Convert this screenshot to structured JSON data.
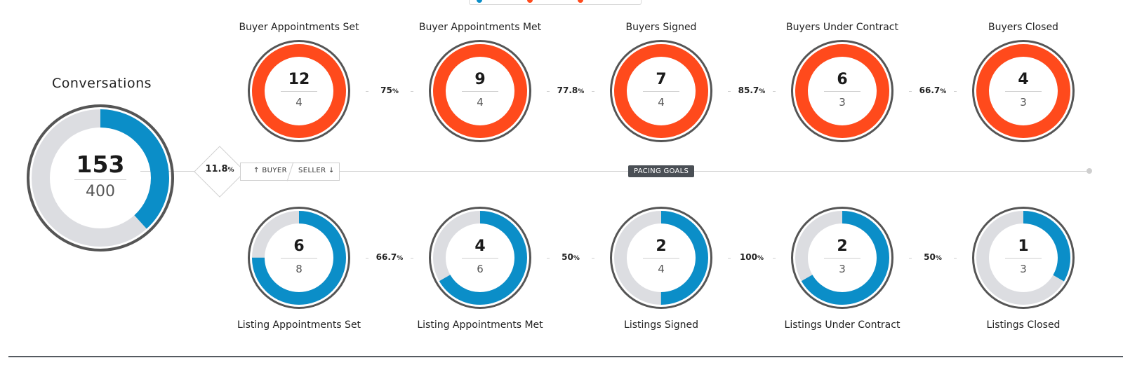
{
  "colors": {
    "buyer_fill": "#ff4a1c",
    "listing_fill": "#0b8ec8",
    "track": "#dcdde1",
    "ring": "#555555"
  },
  "conversations": {
    "title": "Conversations",
    "actual": "153",
    "goal": "400",
    "progress": 0.3825
  },
  "conversion_rate": {
    "value": "11.8",
    "unit": "%"
  },
  "toggle": {
    "buyer_label": "↑ BUYER",
    "seller_label": "SELLER ↓"
  },
  "pacing_label": "PACING GOALS",
  "buyer_stages": [
    {
      "label": "Buyer Appointments Set",
      "actual": "12",
      "goal": "4",
      "progress": 1
    },
    {
      "label": "Buyer Appointments Met",
      "actual": "9",
      "goal": "4",
      "progress": 1
    },
    {
      "label": "Buyers Signed",
      "actual": "7",
      "goal": "4",
      "progress": 1
    },
    {
      "label": "Buyers Under Contract",
      "actual": "6",
      "goal": "3",
      "progress": 1
    },
    {
      "label": "Buyers Closed",
      "actual": "4",
      "goal": "3",
      "progress": 1
    }
  ],
  "buyer_rates": [
    {
      "value": "75",
      "unit": "%"
    },
    {
      "value": "77.8",
      "unit": "%"
    },
    {
      "value": "85.7",
      "unit": "%"
    },
    {
      "value": "66.7",
      "unit": "%"
    }
  ],
  "listing_stages": [
    {
      "label": "Listing Appointments Set",
      "actual": "6",
      "goal": "8",
      "progress": 0.75
    },
    {
      "label": "Listing Appointments Met",
      "actual": "4",
      "goal": "6",
      "progress": 0.6667
    },
    {
      "label": "Listings Signed",
      "actual": "2",
      "goal": "4",
      "progress": 0.5
    },
    {
      "label": "Listings Under Contract",
      "actual": "2",
      "goal": "3",
      "progress": 0.6667
    },
    {
      "label": "Listings Closed",
      "actual": "1",
      "goal": "3",
      "progress": 0.3333
    }
  ],
  "listing_rates": [
    {
      "value": "66.7",
      "unit": "%"
    },
    {
      "value": "50",
      "unit": "%"
    },
    {
      "value": "100",
      "unit": "%"
    },
    {
      "value": "50",
      "unit": "%"
    }
  ]
}
